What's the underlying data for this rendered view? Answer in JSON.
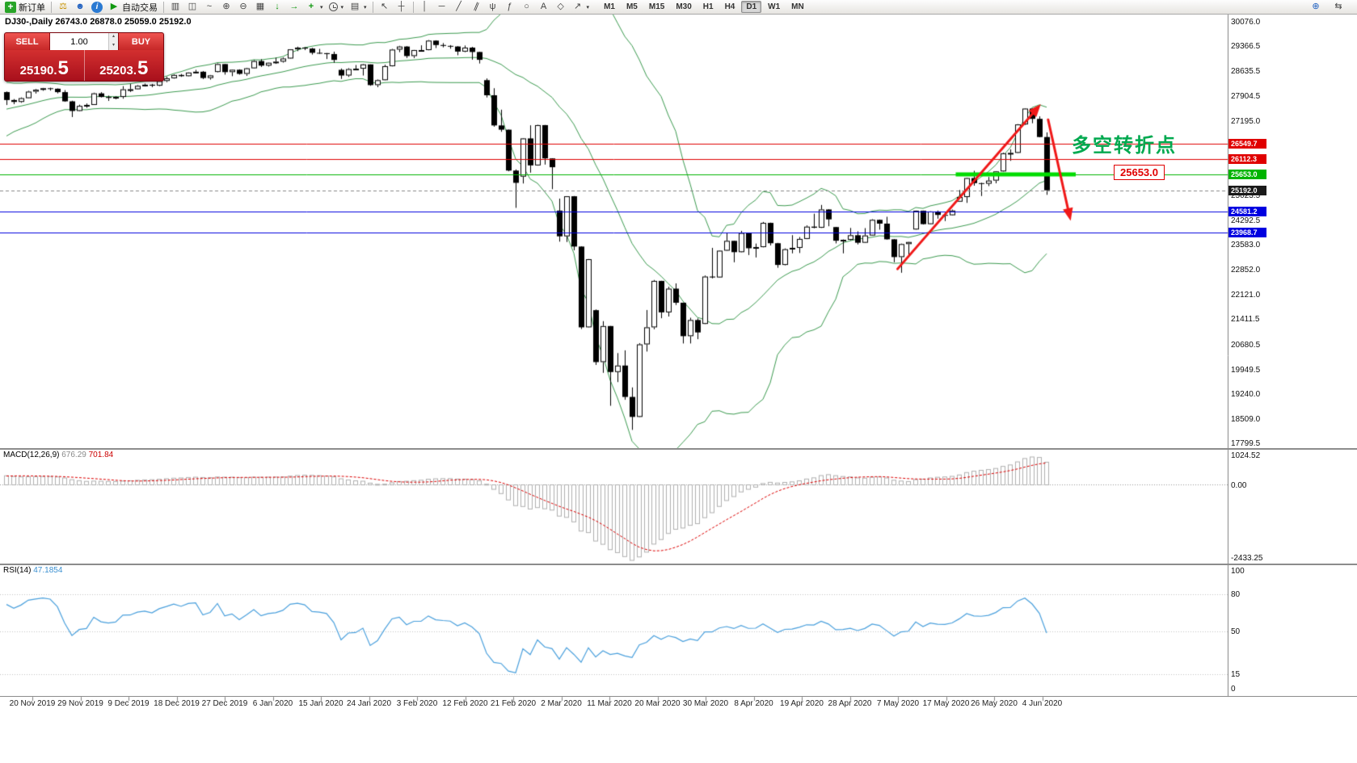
{
  "toolbar": {
    "new_order_label": "新订单",
    "autotrade_label": "自动交易",
    "timeframes": [
      "M1",
      "M5",
      "M15",
      "M30",
      "H1",
      "H4",
      "D1",
      "W1",
      "MN"
    ],
    "active_timeframe": "D1"
  },
  "chart": {
    "title": "DJ30-,Daily",
    "ohlc_text": "26743.0 26878.0 25059.0 25192.0",
    "trade_panel": {
      "sell_label": "SELL",
      "buy_label": "BUY",
      "lot": "1.00",
      "sell_price_main": "25190",
      "sell_price_big": "5",
      "buy_price_main": "25203",
      "buy_price_big": "5"
    },
    "annotation": {
      "text": "多空转折点",
      "color": "#00A94F"
    },
    "callout": {
      "text": "25653.0",
      "color": "#E00000"
    }
  },
  "macd": {
    "name": "MACD(12,26,9)",
    "value_main": "676.29",
    "value_signal": "701.84",
    "axis_max": "1024.52",
    "axis_zero": "0.00",
    "axis_min": "-2433.25"
  },
  "rsi": {
    "name": "RSI(14)",
    "value": "47.1854",
    "axis": [
      "100",
      "80",
      "50",
      "15",
      "0"
    ]
  },
  "date_axis": [
    "20 Nov 2019",
    "29 Nov 2019",
    "9 Dec 2019",
    "18 Dec 2019",
    "27 Dec 2019",
    "6 Jan 2020",
    "15 Jan 2020",
    "24 Jan 2020",
    "3 Feb 2020",
    "12 Feb 2020",
    "21 Feb 2020",
    "2 Mar 2020",
    "11 Mar 2020",
    "20 Mar 2020",
    "30 Mar 2020",
    "8 Apr 2020",
    "19 Apr 2020",
    "28 Apr 2020",
    "7 May 2020",
    "17 May 2020",
    "26 May 2020",
    "4 Jun 2020"
  ],
  "chart_data": {
    "type": "candlestick",
    "symbol": "DJ30-",
    "period": "Daily",
    "last_ohlc": {
      "open": 26743.0,
      "high": 26878.0,
      "low": 25059.0,
      "close": 25192.0
    },
    "price_ticks": [
      30076.0,
      29366.5,
      28635.5,
      27904.5,
      27195.0,
      25023.5,
      24292.5,
      23583.0,
      22852.0,
      22121.0,
      21411.5,
      20680.5,
      19949.5,
      19240.0,
      18509.0,
      17799.5
    ],
    "line_levels": [
      {
        "price": 26549.7,
        "color": "#E00000",
        "width": 1
      },
      {
        "price": 26112.3,
        "color": "#E00000",
        "width": 1
      },
      {
        "price": 25653.0,
        "color": "#00B400",
        "width": 1
      },
      {
        "price": 24581.2,
        "color": "#0000E0",
        "width": 1
      },
      {
        "price": 23968.7,
        "color": "#0000E0",
        "width": 1
      }
    ],
    "bid_line": {
      "price": 25192.0,
      "badge_color": "#1a1a1a"
    },
    "support_segment": {
      "price": 25653.0,
      "from_bar": 130.5,
      "to_bar": 147,
      "color": "#00DC00",
      "width": 5
    },
    "arrows": [
      {
        "from_bar": 122.5,
        "from_price": 22900,
        "to_bar": 142.2,
        "to_price": 27700,
        "color": "#F01818",
        "width": 3
      },
      {
        "from_bar": 143.2,
        "from_price": 27250,
        "to_bar": 146.3,
        "to_price": 24300,
        "color": "#F01818",
        "width": 3
      }
    ],
    "bollinger": {
      "period": 20,
      "deviation": 2,
      "color": "#3C9B50"
    },
    "macd_settings": {
      "fast": 12,
      "slow": 26,
      "signal": 9,
      "current_main": 676.29,
      "current_signal": 701.84
    },
    "rsi_settings": {
      "period": 14,
      "current": 47.1854,
      "levels": [
        80,
        50,
        15
      ]
    },
    "pre_closes": [
      26834,
      26805,
      27024,
      27091,
      27071,
      27046,
      27186,
      27347,
      27462,
      27493,
      27674,
      27681,
      27691,
      27783,
      27912,
      28005,
      28036,
      28004,
      27934,
      28052
    ],
    "candles": [
      [
        "2019-11-20",
        28052,
        28070,
        27675,
        27821
      ],
      [
        "2019-11-21",
        27821,
        27850,
        27700,
        27766
      ],
      [
        "2019-11-22",
        27766,
        27898,
        27740,
        27875
      ],
      [
        "2019-11-25",
        27875,
        28090,
        27870,
        28066
      ],
      [
        "2019-11-26",
        28066,
        28140,
        28010,
        28121
      ],
      [
        "2019-11-27",
        28121,
        28175,
        28090,
        28164
      ],
      [
        "2019-11-28",
        28164,
        28180,
        28095,
        28150
      ],
      [
        "2019-11-29",
        28150,
        28160,
        28015,
        28051
      ],
      [
        "2019-12-02",
        28051,
        28110,
        27770,
        27783
      ],
      [
        "2019-12-03",
        27783,
        27800,
        27325,
        27502
      ],
      [
        "2019-12-04",
        27502,
        27685,
        27490,
        27650
      ],
      [
        "2019-12-05",
        27650,
        27720,
        27595,
        27678
      ],
      [
        "2019-12-06",
        27678,
        28035,
        27678,
        28015
      ],
      [
        "2019-12-09",
        28015,
        28050,
        27895,
        27910
      ],
      [
        "2019-12-10",
        27910,
        27950,
        27795,
        27882
      ],
      [
        "2019-12-11",
        27882,
        27930,
        27845,
        27911
      ],
      [
        "2019-12-12",
        27911,
        28225,
        27860,
        28132
      ],
      [
        "2019-12-13",
        28132,
        28290,
        28055,
        28135
      ],
      [
        "2019-12-16",
        28135,
        28255,
        28130,
        28235
      ],
      [
        "2019-12-17",
        28235,
        28300,
        28215,
        28267
      ],
      [
        "2019-12-18",
        28267,
        28290,
        28195,
        28239
      ],
      [
        "2019-12-19",
        28239,
        28390,
        28225,
        28377
      ],
      [
        "2019-12-20",
        28377,
        28500,
        28340,
        28455
      ],
      [
        "2019-12-23",
        28455,
        28570,
        28445,
        28551
      ],
      [
        "2019-12-24",
        28551,
        28580,
        28495,
        28516
      ],
      [
        "2019-12-26",
        28516,
        28625,
        28510,
        28621
      ],
      [
        "2019-12-27",
        28621,
        28700,
        28595,
        28645
      ],
      [
        "2019-12-30",
        28645,
        28665,
        28430,
        28462
      ],
      [
        "2019-12-31",
        28462,
        28550,
        28415,
        28538
      ],
      [
        "2020-01-02",
        28638,
        28890,
        28625,
        28868
      ],
      [
        "2020-01-03",
        28868,
        28870,
        28560,
        28634
      ],
      [
        "2020-01-06",
        28634,
        28710,
        28515,
        28703
      ],
      [
        "2020-01-07",
        28703,
        28715,
        28560,
        28583
      ],
      [
        "2020-01-08",
        28583,
        28760,
        28525,
        28745
      ],
      [
        "2020-01-09",
        28745,
        28985,
        28740,
        28956
      ],
      [
        "2020-01-10",
        28956,
        29010,
        28785,
        28823
      ],
      [
        "2020-01-13",
        28823,
        28910,
        28795,
        28907
      ],
      [
        "2020-01-14",
        28907,
        29055,
        28875,
        28939
      ],
      [
        "2020-01-15",
        28939,
        29060,
        28910,
        29030
      ],
      [
        "2020-01-16",
        29030,
        29300,
        29025,
        29297
      ],
      [
        "2020-01-17",
        29297,
        29375,
        29245,
        29348
      ],
      [
        "2020-01-20",
        29348,
        29360,
        29275,
        29320
      ],
      [
        "2020-01-21",
        29320,
        29340,
        29145,
        29196
      ],
      [
        "2020-01-22",
        29196,
        29310,
        29165,
        29186
      ],
      [
        "2020-01-23",
        29186,
        29190,
        29015,
        29160
      ],
      [
        "2020-01-24",
        29160,
        29230,
        28905,
        28989
      ],
      [
        "2020-01-27",
        28700,
        28740,
        28435,
        28535
      ],
      [
        "2020-01-28",
        28535,
        28750,
        28495,
        28722
      ],
      [
        "2020-01-29",
        28722,
        28840,
        28695,
        28734
      ],
      [
        "2020-01-30",
        28734,
        28870,
        28535,
        28859
      ],
      [
        "2020-01-31",
        28859,
        28860,
        28235,
        28256
      ],
      [
        "2020-02-03",
        28256,
        28420,
        28195,
        28399
      ],
      [
        "2020-02-04",
        28399,
        28850,
        28395,
        28807
      ],
      [
        "2020-02-05",
        28807,
        29310,
        28800,
        29290
      ],
      [
        "2020-02-06",
        29290,
        29400,
        29215,
        29379
      ],
      [
        "2020-02-07",
        29379,
        29390,
        29045,
        29102
      ],
      [
        "2020-02-10",
        29102,
        29280,
        29045,
        29276
      ],
      [
        "2020-02-11",
        29276,
        29415,
        29245,
        29276
      ],
      [
        "2020-02-12",
        29276,
        29568,
        29270,
        29551
      ],
      [
        "2020-02-13",
        29551,
        29560,
        29335,
        29423
      ],
      [
        "2020-02-14",
        29423,
        29480,
        29355,
        29398
      ],
      [
        "2020-02-17",
        29398,
        29420,
        29315,
        29380
      ],
      [
        "2020-02-18",
        29380,
        29390,
        29125,
        29232
      ],
      [
        "2020-02-19",
        29232,
        29409,
        29215,
        29348
      ],
      [
        "2020-02-20",
        29348,
        29370,
        28995,
        29220
      ],
      [
        "2020-02-21",
        29220,
        29225,
        28885,
        28992
      ],
      [
        "2020-02-24",
        28400,
        28450,
        27895,
        27960
      ],
      [
        "2020-02-25",
        27960,
        28165,
        27045,
        27081
      ],
      [
        "2020-02-26",
        27081,
        27540,
        26895,
        26957
      ],
      [
        "2020-02-27",
        26957,
        26960,
        25745,
        25766
      ],
      [
        "2020-02-28",
        25766,
        25800,
        24680,
        25409
      ],
      [
        "2020-03-02",
        25590,
        26710,
        25390,
        26703
      ],
      [
        "2020-03-03",
        26703,
        27085,
        25705,
        25917
      ],
      [
        "2020-03-04",
        25917,
        27100,
        25910,
        27090
      ],
      [
        "2020-03-05",
        27090,
        27095,
        25940,
        26121
      ],
      [
        "2020-03-06",
        26121,
        26125,
        25225,
        25864
      ],
      [
        "2020-03-09",
        24600,
        24950,
        23695,
        23851
      ],
      [
        "2020-03-10",
        23851,
        25020,
        23685,
        25018
      ],
      [
        "2020-03-11",
        25018,
        25025,
        23445,
        23553
      ],
      [
        "2020-03-12",
        23553,
        23560,
        21150,
        21200
      ],
      [
        "2020-03-13",
        21200,
        23190,
        21195,
        23185
      ],
      [
        "2020-03-16",
        21700,
        21720,
        20105,
        20188
      ],
      [
        "2020-03-17",
        20188,
        21380,
        19875,
        21237
      ],
      [
        "2020-03-18",
        21237,
        21240,
        18915,
        19898
      ],
      [
        "2020-03-19",
        19898,
        20450,
        19605,
        20087
      ],
      [
        "2020-03-20",
        20087,
        20530,
        19090,
        19173
      ],
      [
        "2020-03-23",
        19173,
        19450,
        18213,
        18591
      ],
      [
        "2020-03-24",
        18591,
        20740,
        18585,
        20704
      ],
      [
        "2020-03-25",
        20704,
        21705,
        20495,
        21200
      ],
      [
        "2020-03-26",
        21200,
        22580,
        21145,
        22552
      ],
      [
        "2020-03-27",
        22552,
        22555,
        21465,
        21636
      ],
      [
        "2020-03-30",
        21636,
        22380,
        21515,
        22327
      ],
      [
        "2020-03-31",
        22327,
        22480,
        21850,
        21917
      ],
      [
        "2020-04-01",
        21917,
        21920,
        20730,
        20943
      ],
      [
        "2020-04-02",
        20943,
        21480,
        20730,
        21413
      ],
      [
        "2020-04-03",
        21413,
        21460,
        20855,
        21052
      ],
      [
        "2020-04-06",
        21300,
        22710,
        21295,
        22679
      ],
      [
        "2020-04-07",
        22679,
        23515,
        22625,
        22653
      ],
      [
        "2020-04-08",
        22653,
        23440,
        22645,
        23433
      ],
      [
        "2020-04-09",
        23433,
        23940,
        23425,
        23719
      ],
      [
        "2020-04-13",
        23719,
        23720,
        23095,
        23390
      ],
      [
        "2020-04-14",
        23390,
        24010,
        23385,
        23949
      ],
      [
        "2020-04-15",
        23949,
        23950,
        23305,
        23504
      ],
      [
        "2020-04-16",
        23504,
        23640,
        23235,
        23537
      ],
      [
        "2020-04-17",
        23537,
        24270,
        23530,
        24242
      ],
      [
        "2020-04-20",
        24242,
        24250,
        23585,
        23650
      ],
      [
        "2020-04-21",
        23650,
        23660,
        22935,
        23018
      ],
      [
        "2020-04-22",
        23018,
        23500,
        23005,
        23475
      ],
      [
        "2020-04-23",
        23475,
        23885,
        23355,
        23515
      ],
      [
        "2020-04-24",
        23515,
        23830,
        23365,
        23775
      ],
      [
        "2020-04-27",
        23775,
        24170,
        23770,
        24133
      ],
      [
        "2020-04-28",
        24133,
        24510,
        24085,
        24101
      ],
      [
        "2020-04-29",
        24101,
        24765,
        24095,
        24633
      ],
      [
        "2020-04-30",
        24633,
        24640,
        24145,
        24345
      ],
      [
        "2020-05-01",
        24120,
        24125,
        23645,
        23723
      ],
      [
        "2020-05-04",
        23723,
        23760,
        23355,
        23749
      ],
      [
        "2020-05-05",
        23749,
        24095,
        23735,
        23883
      ],
      [
        "2020-05-06",
        23883,
        23995,
        23615,
        23664
      ],
      [
        "2020-05-07",
        23664,
        24090,
        23655,
        23875
      ],
      [
        "2020-05-08",
        23875,
        24350,
        23870,
        24331
      ],
      [
        "2020-05-11",
        24331,
        24340,
        24045,
        24221
      ],
      [
        "2020-05-12",
        24221,
        24420,
        23755,
        23764
      ],
      [
        "2020-05-13",
        23764,
        23770,
        23095,
        23247
      ],
      [
        "2020-05-14",
        23247,
        23640,
        22790,
        23625
      ],
      [
        "2020-05-15",
        23625,
        23690,
        23285,
        23685
      ],
      [
        "2020-05-18",
        24050,
        24600,
        24045,
        24597
      ],
      [
        "2020-05-19",
        24597,
        24600,
        24195,
        24206
      ],
      [
        "2020-05-20",
        24206,
        24580,
        24200,
        24575
      ],
      [
        "2020-05-21",
        24575,
        24600,
        24365,
        24474
      ],
      [
        "2020-05-22",
        24474,
        24480,
        24295,
        24465
      ],
      [
        "2020-05-25",
        24465,
        24630,
        24455,
        24602
      ],
      [
        "2020-05-26",
        24860,
        25200,
        24855,
        24995
      ],
      [
        "2020-05-27",
        24995,
        25560,
        24825,
        25548
      ],
      [
        "2020-05-28",
        25548,
        25760,
        25325,
        25400
      ],
      [
        "2020-05-29",
        25400,
        25410,
        25025,
        25383
      ],
      [
        "2020-06-01",
        25383,
        25580,
        25315,
        25475
      ],
      [
        "2020-06-02",
        25475,
        25750,
        25395,
        25742
      ],
      [
        "2020-06-03",
        25742,
        26290,
        25735,
        26269
      ],
      [
        "2020-06-04",
        26269,
        26385,
        26050,
        26281
      ],
      [
        "2020-06-05",
        26281,
        27120,
        26275,
        27110
      ],
      [
        "2020-06-08",
        27110,
        27580,
        27095,
        27572
      ],
      [
        "2020-06-09",
        27572,
        27580,
        27145,
        27272
      ],
      [
        "2020-06-10",
        27272,
        27345,
        26735,
        26743
      ],
      [
        "2020-06-11",
        26743,
        26878,
        25059,
        25192
      ]
    ]
  }
}
